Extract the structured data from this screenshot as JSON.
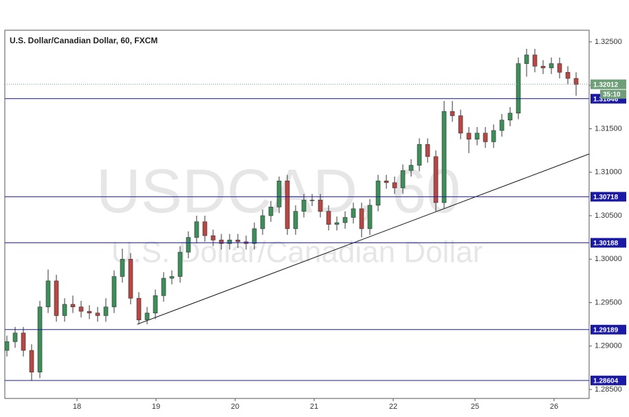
{
  "chart_data": {
    "type": "candlestick",
    "title": "U.S. Dollar/Canadian Dollar, 60, FXCM",
    "watermark": "USDCAD, 60",
    "watermark_sub": "U.S. Dollar/Canadian Dollar",
    "up_color": "#3d8f5a",
    "down_color": "#b84744",
    "open": [
      1.2895,
      1.2905,
      1.2915,
      1.2895,
      1.287,
      1.2945,
      1.2975,
      1.2935,
      1.2948,
      1.2945,
      1.294,
      1.2938,
      1.2935,
      1.2945,
      1.298,
      1.3,
      1.2955,
      1.293,
      1.2938,
      1.2958,
      1.2978,
      1.298,
      1.3008,
      1.3025,
      1.3043,
      1.3027,
      1.3022,
      1.3018,
      1.3022,
      1.302,
      1.3018,
      1.3035,
      1.305,
      1.306,
      1.309,
      1.3035,
      1.3055,
      1.3068,
      1.3068,
      1.3055,
      1.304,
      1.3042,
      1.3048,
      1.3058,
      1.3035,
      1.3062,
      1.309,
      1.3088,
      1.3082,
      1.3102,
      1.3108,
      1.3132,
      1.3118,
      1.3065,
      1.317,
      1.3165,
      1.3145,
      1.3138,
      1.3145,
      1.3135,
      1.3148,
      1.316,
      1.3168,
      1.3225,
      1.3235,
      1.3222,
      1.322,
      1.3225,
      1.3215,
      1.3208
    ],
    "high": [
      1.2912,
      1.2922,
      1.2922,
      1.2902,
      1.2952,
      1.2988,
      1.2982,
      1.2955,
      1.2958,
      1.2952,
      1.2947,
      1.2945,
      1.2955,
      1.2987,
      1.3012,
      1.3007,
      1.2962,
      1.2945,
      1.2965,
      1.2985,
      1.2987,
      1.3015,
      1.3032,
      1.305,
      1.305,
      1.3034,
      1.3029,
      1.3029,
      1.3029,
      1.3027,
      1.3042,
      1.3057,
      1.3067,
      1.3095,
      1.3097,
      1.3062,
      1.3075,
      1.3075,
      1.3075,
      1.3062,
      1.3049,
      1.3055,
      1.3065,
      1.3065,
      1.3069,
      1.3097,
      1.3097,
      1.3095,
      1.3109,
      1.3115,
      1.3139,
      1.3139,
      1.3125,
      1.3182,
      1.3182,
      1.3172,
      1.3152,
      1.3152,
      1.3152,
      1.3155,
      1.3167,
      1.3175,
      1.3232,
      1.3242,
      1.3242,
      1.3229,
      1.3232,
      1.3232,
      1.3222,
      1.3215
    ],
    "low": [
      1.2888,
      1.2898,
      1.2888,
      1.286,
      1.2863,
      1.2938,
      1.2928,
      1.2928,
      1.2938,
      1.2933,
      1.2931,
      1.2928,
      1.2928,
      1.2938,
      1.2973,
      1.2948,
      1.2925,
      1.2925,
      1.2931,
      1.2951,
      1.2971,
      1.2973,
      1.3001,
      1.3018,
      1.302,
      1.3015,
      1.3011,
      1.3011,
      1.3013,
      1.3011,
      1.3011,
      1.3028,
      1.3043,
      1.3053,
      1.3028,
      1.3028,
      1.3048,
      1.3061,
      1.3048,
      1.3033,
      1.3033,
      1.3035,
      1.3041,
      1.3025,
      1.3028,
      1.3055,
      1.3081,
      1.3075,
      1.3075,
      1.3095,
      1.3101,
      1.3111,
      1.3055,
      1.3058,
      1.3158,
      1.3138,
      1.3122,
      1.3131,
      1.3128,
      1.3128,
      1.3141,
      1.3153,
      1.3161,
      1.321,
      1.3215,
      1.3213,
      1.3213,
      1.3208,
      1.3201,
      1.3188
    ],
    "close": [
      1.2905,
      1.2915,
      1.2895,
      1.287,
      1.2945,
      1.2975,
      1.2935,
      1.2948,
      1.2945,
      1.294,
      1.2938,
      1.2935,
      1.2945,
      1.298,
      1.3,
      1.2955,
      1.293,
      1.2938,
      1.2958,
      1.2978,
      1.298,
      1.3008,
      1.3025,
      1.3043,
      1.3027,
      1.3022,
      1.3018,
      1.3022,
      1.302,
      1.3018,
      1.3035,
      1.305,
      1.306,
      1.309,
      1.3035,
      1.3055,
      1.3068,
      1.3068,
      1.3055,
      1.304,
      1.3042,
      1.3048,
      1.3058,
      1.3035,
      1.3062,
      1.309,
      1.3088,
      1.3082,
      1.3102,
      1.3108,
      1.3132,
      1.3118,
      1.3065,
      1.317,
      1.3165,
      1.3145,
      1.3138,
      1.3145,
      1.3135,
      1.3148,
      1.316,
      1.3168,
      1.3225,
      1.3235,
      1.3222,
      1.322,
      1.3225,
      1.3215,
      1.3208,
      1.3201
    ],
    "xlim": [
      -0.25,
      70.58
    ],
    "xticks": [
      {
        "value": 8.5,
        "label": "18"
      },
      {
        "value": 18.08,
        "label": "19"
      },
      {
        "value": 27.67,
        "label": "20"
      },
      {
        "value": 37.25,
        "label": "21"
      },
      {
        "value": 46.83,
        "label": "22"
      },
      {
        "value": 56.75,
        "label": "25"
      },
      {
        "value": 66.33,
        "label": "26"
      }
    ],
    "ylim": [
      1.28397,
      1.32634
    ],
    "yticks": [
      {
        "value": 1.285,
        "label": "1.28500"
      },
      {
        "value": 1.29,
        "label": "1.29000"
      },
      {
        "value": 1.295,
        "label": "1.29500"
      },
      {
        "value": 1.3,
        "label": "1.30000"
      },
      {
        "value": 1.305,
        "label": "1.30500"
      },
      {
        "value": 1.31,
        "label": "1.31000"
      },
      {
        "value": 1.315,
        "label": "1.31500"
      },
      {
        "value": 1.32,
        "label": "1.32000"
      },
      {
        "value": 1.325,
        "label": "1.32500"
      }
    ],
    "levels": [
      1.31846,
      1.30718,
      1.30188,
      1.29189,
      1.28604
    ],
    "level_color": "#1a1aa6",
    "current": {
      "value": 1.32012,
      "countdown": "35:10",
      "color": "#6e9f79"
    },
    "trendline": {
      "x": [
        15.8,
        70.58
      ],
      "y": [
        1.2925,
        1.3121
      ]
    }
  }
}
